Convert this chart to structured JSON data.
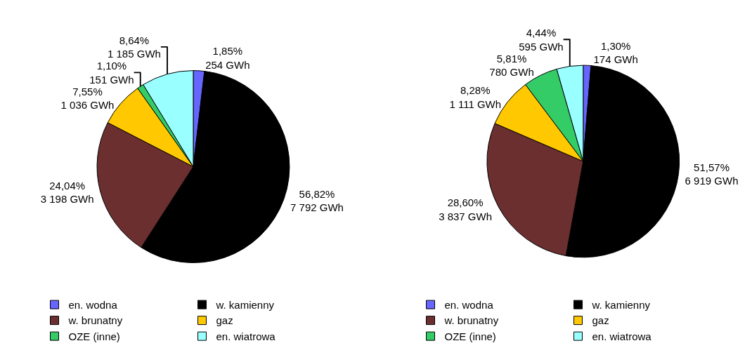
{
  "chart_data": [
    {
      "type": "pie",
      "categories": [
        "en. wodna",
        "w. kamienny",
        "w. brunatny",
        "gaz",
        "OZE (inne)",
        "en. wiatrowa"
      ],
      "values": [
        254,
        7792,
        3198,
        1036,
        151,
        1185
      ],
      "colors": [
        "#6666ff",
        "#000000",
        "#6b2f2f",
        "#ffc800",
        "#33cc66",
        "#99ffff"
      ],
      "value_labels": [
        "1,85%\n254 GWh",
        "56,82%\n7 792 GWh",
        "24,04%\n3 198 GWh",
        "7,55%\n1 036 GWh",
        "1,10%\n151 GWh",
        "8,64%\n1 185 GWh"
      ],
      "legend": "bottom"
    },
    {
      "type": "pie",
      "categories": [
        "en. wodna",
        "w. kamienny",
        "w. brunatny",
        "gaz",
        "OZE (inne)",
        "en. wiatrowa"
      ],
      "values": [
        174,
        6919,
        3837,
        1111,
        780,
        595
      ],
      "colors": [
        "#6666ff",
        "#000000",
        "#6b2f2f",
        "#ffc800",
        "#33cc66",
        "#99ffff"
      ],
      "value_labels": [
        "1,30%\n174 GWh",
        "51,57%\n6 919 GWh",
        "28,60%\n3 837 GWh",
        "8,28%\n1 111 GWh",
        "5,81%\n780 GWh",
        "4,44%\n595 GWh"
      ],
      "legend": "bottom"
    }
  ]
}
